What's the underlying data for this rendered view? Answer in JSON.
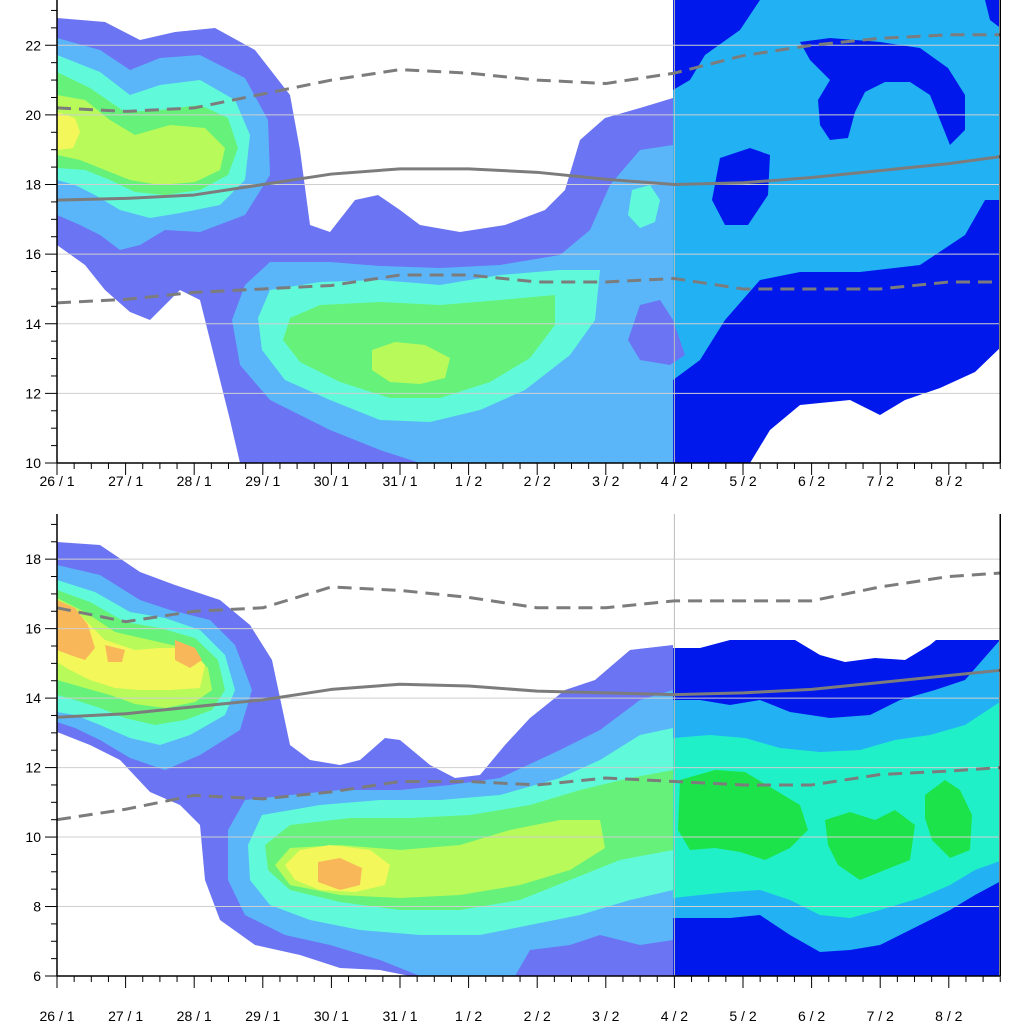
{
  "chart_data": [
    {
      "type": "heatmap",
      "title": "",
      "xlabel": "",
      "ylabel": "",
      "x_tick_labels": [
        "26 / 1",
        "27 / 1",
        "28 / 1",
        "29 / 1",
        "30 / 1",
        "31 / 1",
        "1 / 2",
        "2 / 2",
        "3 / 2",
        "4 / 2",
        "5 / 2",
        "6 / 2",
        "7 / 2",
        "8 / 2"
      ],
      "xlim": [
        0,
        13.75
      ],
      "ylim": [
        10,
        23.3
      ],
      "y_ticks": [
        10,
        12,
        14,
        16,
        18,
        20,
        22
      ],
      "grid": true,
      "vertical_marker_x": 9,
      "series": [
        {
          "style": "solid",
          "x": [
            0,
            1,
            2,
            3,
            4,
            5,
            6,
            7,
            8,
            9,
            10,
            11,
            12,
            13,
            13.75
          ],
          "y": [
            17.55,
            17.6,
            17.7,
            18.0,
            18.3,
            18.45,
            18.45,
            18.35,
            18.15,
            18.0,
            18.05,
            18.2,
            18.4,
            18.6,
            18.8
          ]
        },
        {
          "style": "dashed",
          "x": [
            0,
            1,
            2,
            3,
            4,
            5,
            6,
            7,
            8,
            9,
            10,
            11,
            12,
            13,
            13.75
          ],
          "y": [
            20.2,
            20.1,
            20.2,
            20.6,
            21.0,
            21.3,
            21.2,
            21.0,
            20.9,
            21.2,
            21.7,
            22.0,
            22.2,
            22.3,
            22.3
          ]
        },
        {
          "style": "dashed",
          "x": [
            0,
            1,
            2,
            3,
            4,
            5,
            6,
            7,
            8,
            9,
            10,
            11,
            12,
            13,
            13.75
          ],
          "y": [
            14.6,
            14.7,
            14.9,
            15.0,
            15.1,
            15.4,
            15.4,
            15.2,
            15.2,
            15.3,
            15.0,
            15.0,
            15.0,
            15.2,
            15.2
          ]
        }
      ]
    },
    {
      "type": "heatmap",
      "title": "",
      "xlabel": "",
      "ylabel": "",
      "x_tick_labels": [
        "26 / 1",
        "27 / 1",
        "28 / 1",
        "29 / 1",
        "30 / 1",
        "31 / 1",
        "1 / 2",
        "2 / 2",
        "3 / 2",
        "4 / 2",
        "5 / 2",
        "6 / 2",
        "7 / 2",
        "8 / 2"
      ],
      "xlim": [
        0,
        13.75
      ],
      "ylim": [
        6,
        19.3
      ],
      "y_ticks": [
        6,
        8,
        10,
        12,
        14,
        16,
        18
      ],
      "grid": true,
      "vertical_marker_x": 9,
      "series": [
        {
          "style": "solid",
          "x": [
            0,
            1,
            2,
            3,
            4,
            5,
            6,
            7,
            8,
            9,
            10,
            11,
            12,
            13,
            13.75
          ],
          "y": [
            13.45,
            13.55,
            13.75,
            13.95,
            14.25,
            14.4,
            14.35,
            14.2,
            14.15,
            14.1,
            14.15,
            14.25,
            14.45,
            14.65,
            14.8
          ]
        },
        {
          "style": "dashed",
          "x": [
            0,
            1,
            2,
            3,
            4,
            5,
            6,
            7,
            8,
            9,
            10,
            11,
            12,
            13,
            13.75
          ],
          "y": [
            16.6,
            16.2,
            16.5,
            16.6,
            17.2,
            17.1,
            16.9,
            16.6,
            16.6,
            16.8,
            16.8,
            16.8,
            17.2,
            17.5,
            17.6
          ]
        },
        {
          "style": "dashed",
          "x": [
            0,
            1,
            2,
            3,
            4,
            5,
            6,
            7,
            8,
            9,
            10,
            11,
            12,
            13,
            13.75
          ],
          "y": [
            10.5,
            10.8,
            11.2,
            11.1,
            11.3,
            11.6,
            11.6,
            11.5,
            11.7,
            11.6,
            11.5,
            11.5,
            11.8,
            11.9,
            12.0
          ]
        }
      ]
    }
  ],
  "colors": {
    "level1": "#6b74f2",
    "level2": "#5ab6f8",
    "level3": "#60fadb",
    "level4": "#66f27a",
    "level5": "#b8fa5a",
    "level6": "#f3f75a",
    "level7": "#f8b85a",
    "dark_blue": "#0018ec",
    "sky_blue": "#22b2f4",
    "line": "#7c7c7c",
    "grid": "#cfcfcf"
  }
}
